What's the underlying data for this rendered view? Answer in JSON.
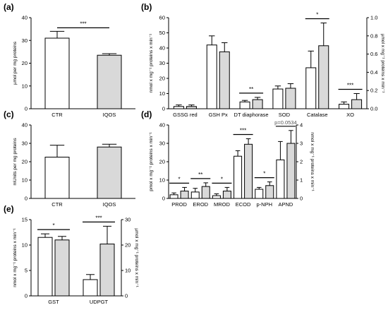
{
  "colors": {
    "control": "#ffffff",
    "treated": "#d9d9d9",
    "stroke": "#000000"
  },
  "chart_data": [
    {
      "panel": "(a)",
      "type": "bar",
      "ylabel": "µmol per mg proteins",
      "ylim": [
        0,
        40
      ],
      "yticks": [
        0,
        10,
        20,
        30,
        40
      ],
      "categories": [
        "CTR",
        "IQOS"
      ],
      "values": [
        31,
        23.5
      ],
      "errors": [
        3,
        0.7
      ],
      "significance": [
        {
          "label": "***",
          "between": [
            0,
            1
          ]
        }
      ]
    },
    {
      "panel": "(b)",
      "type": "bar",
      "ylabel": "nmol x mg⁻¹ proteins x min⁻¹",
      "ylabel_right": "µmol x mg⁻¹ proteins x min⁻¹",
      "ylim": [
        0,
        60
      ],
      "yticks": [
        0,
        10,
        20,
        30,
        40,
        50,
        60
      ],
      "ylim_right": [
        0,
        1.0
      ],
      "yticks_right": [
        0.0,
        0.2,
        0.4,
        0.6,
        0.8,
        1.0
      ],
      "categories": [
        "GSSG red",
        "GSH Px",
        "DT diaphorase",
        "SOD",
        "Catalase",
        "XO"
      ],
      "series": [
        {
          "values": [
            1.5,
            42,
            4.5,
            13,
            27,
            3
          ],
          "errors": [
            1,
            6,
            1,
            2,
            11,
            1.5
          ]
        },
        {
          "values": [
            1.5,
            37.5,
            6,
            13.5,
            41.5,
            6
          ],
          "errors": [
            1,
            6,
            1.5,
            3,
            15,
            4
          ]
        }
      ],
      "significance": [
        {
          "label": "**",
          "category": 2
        },
        {
          "label": "*",
          "category": 4
        },
        {
          "label": "***",
          "category": 5
        }
      ]
    },
    {
      "panel": "(c)",
      "type": "bar",
      "ylabel": "mUnits per mg proteins",
      "ylim": [
        0,
        40
      ],
      "yticks": [
        0,
        10,
        20,
        30,
        40
      ],
      "categories": [
        "CTR",
        "IQOS"
      ],
      "values": [
        22.5,
        28
      ],
      "errors": [
        6.5,
        1.5
      ]
    },
    {
      "panel": "(d)",
      "type": "bar",
      "ylabel": "pmol x mg⁻¹ proteins x min⁻¹",
      "ylabel_right": "nmol x mg⁻¹ proteins x min⁻¹",
      "ylim": [
        0,
        40
      ],
      "yticks": [
        0,
        10,
        20,
        30,
        40
      ],
      "ylim_right": [
        0,
        4
      ],
      "yticks_right": [
        0,
        1,
        2,
        3,
        4
      ],
      "categories": [
        "PROD",
        "EROD",
        "MROD",
        "ECOD",
        "p-NPH",
        "APND"
      ],
      "series": [
        {
          "values": [
            2,
            3.5,
            1.5,
            23,
            5,
            21
          ],
          "errors": [
            1,
            2,
            1,
            3,
            1,
            10
          ]
        },
        {
          "values": [
            4,
            6.5,
            4,
            29.5,
            7,
            30
          ],
          "errors": [
            2,
            2,
            2,
            3,
            2,
            7
          ]
        }
      ],
      "significance": [
        {
          "label": "*",
          "category": 0
        },
        {
          "label": "**",
          "category": 1
        },
        {
          "label": "*",
          "category": 2
        },
        {
          "label": "***",
          "category": 3
        },
        {
          "label": "*",
          "category": 4
        }
      ],
      "annotation": {
        "label": "p=0.0534",
        "category": 5
      }
    },
    {
      "panel": "(e)",
      "type": "bar",
      "ylabel": "nmol x mg⁻¹ proteins x min⁻¹",
      "ylabel_right": "µmol x mg⁻¹ proteins x min⁻¹",
      "ylim": [
        0,
        15
      ],
      "yticks": [
        0,
        5,
        10,
        15
      ],
      "ylim_right": [
        0,
        30
      ],
      "yticks_right": [
        0,
        10,
        20,
        30
      ],
      "categories": [
        "GST",
        "UDPGT"
      ],
      "series": [
        {
          "values": [
            11.5,
            3.2
          ],
          "errors": [
            0.7,
            1
          ]
        },
        {
          "values": [
            11,
            10.2
          ],
          "errors": [
            0.7,
            3.5
          ]
        }
      ],
      "significance": [
        {
          "label": "*",
          "category": 0
        },
        {
          "label": "***",
          "category": 1
        }
      ]
    }
  ]
}
